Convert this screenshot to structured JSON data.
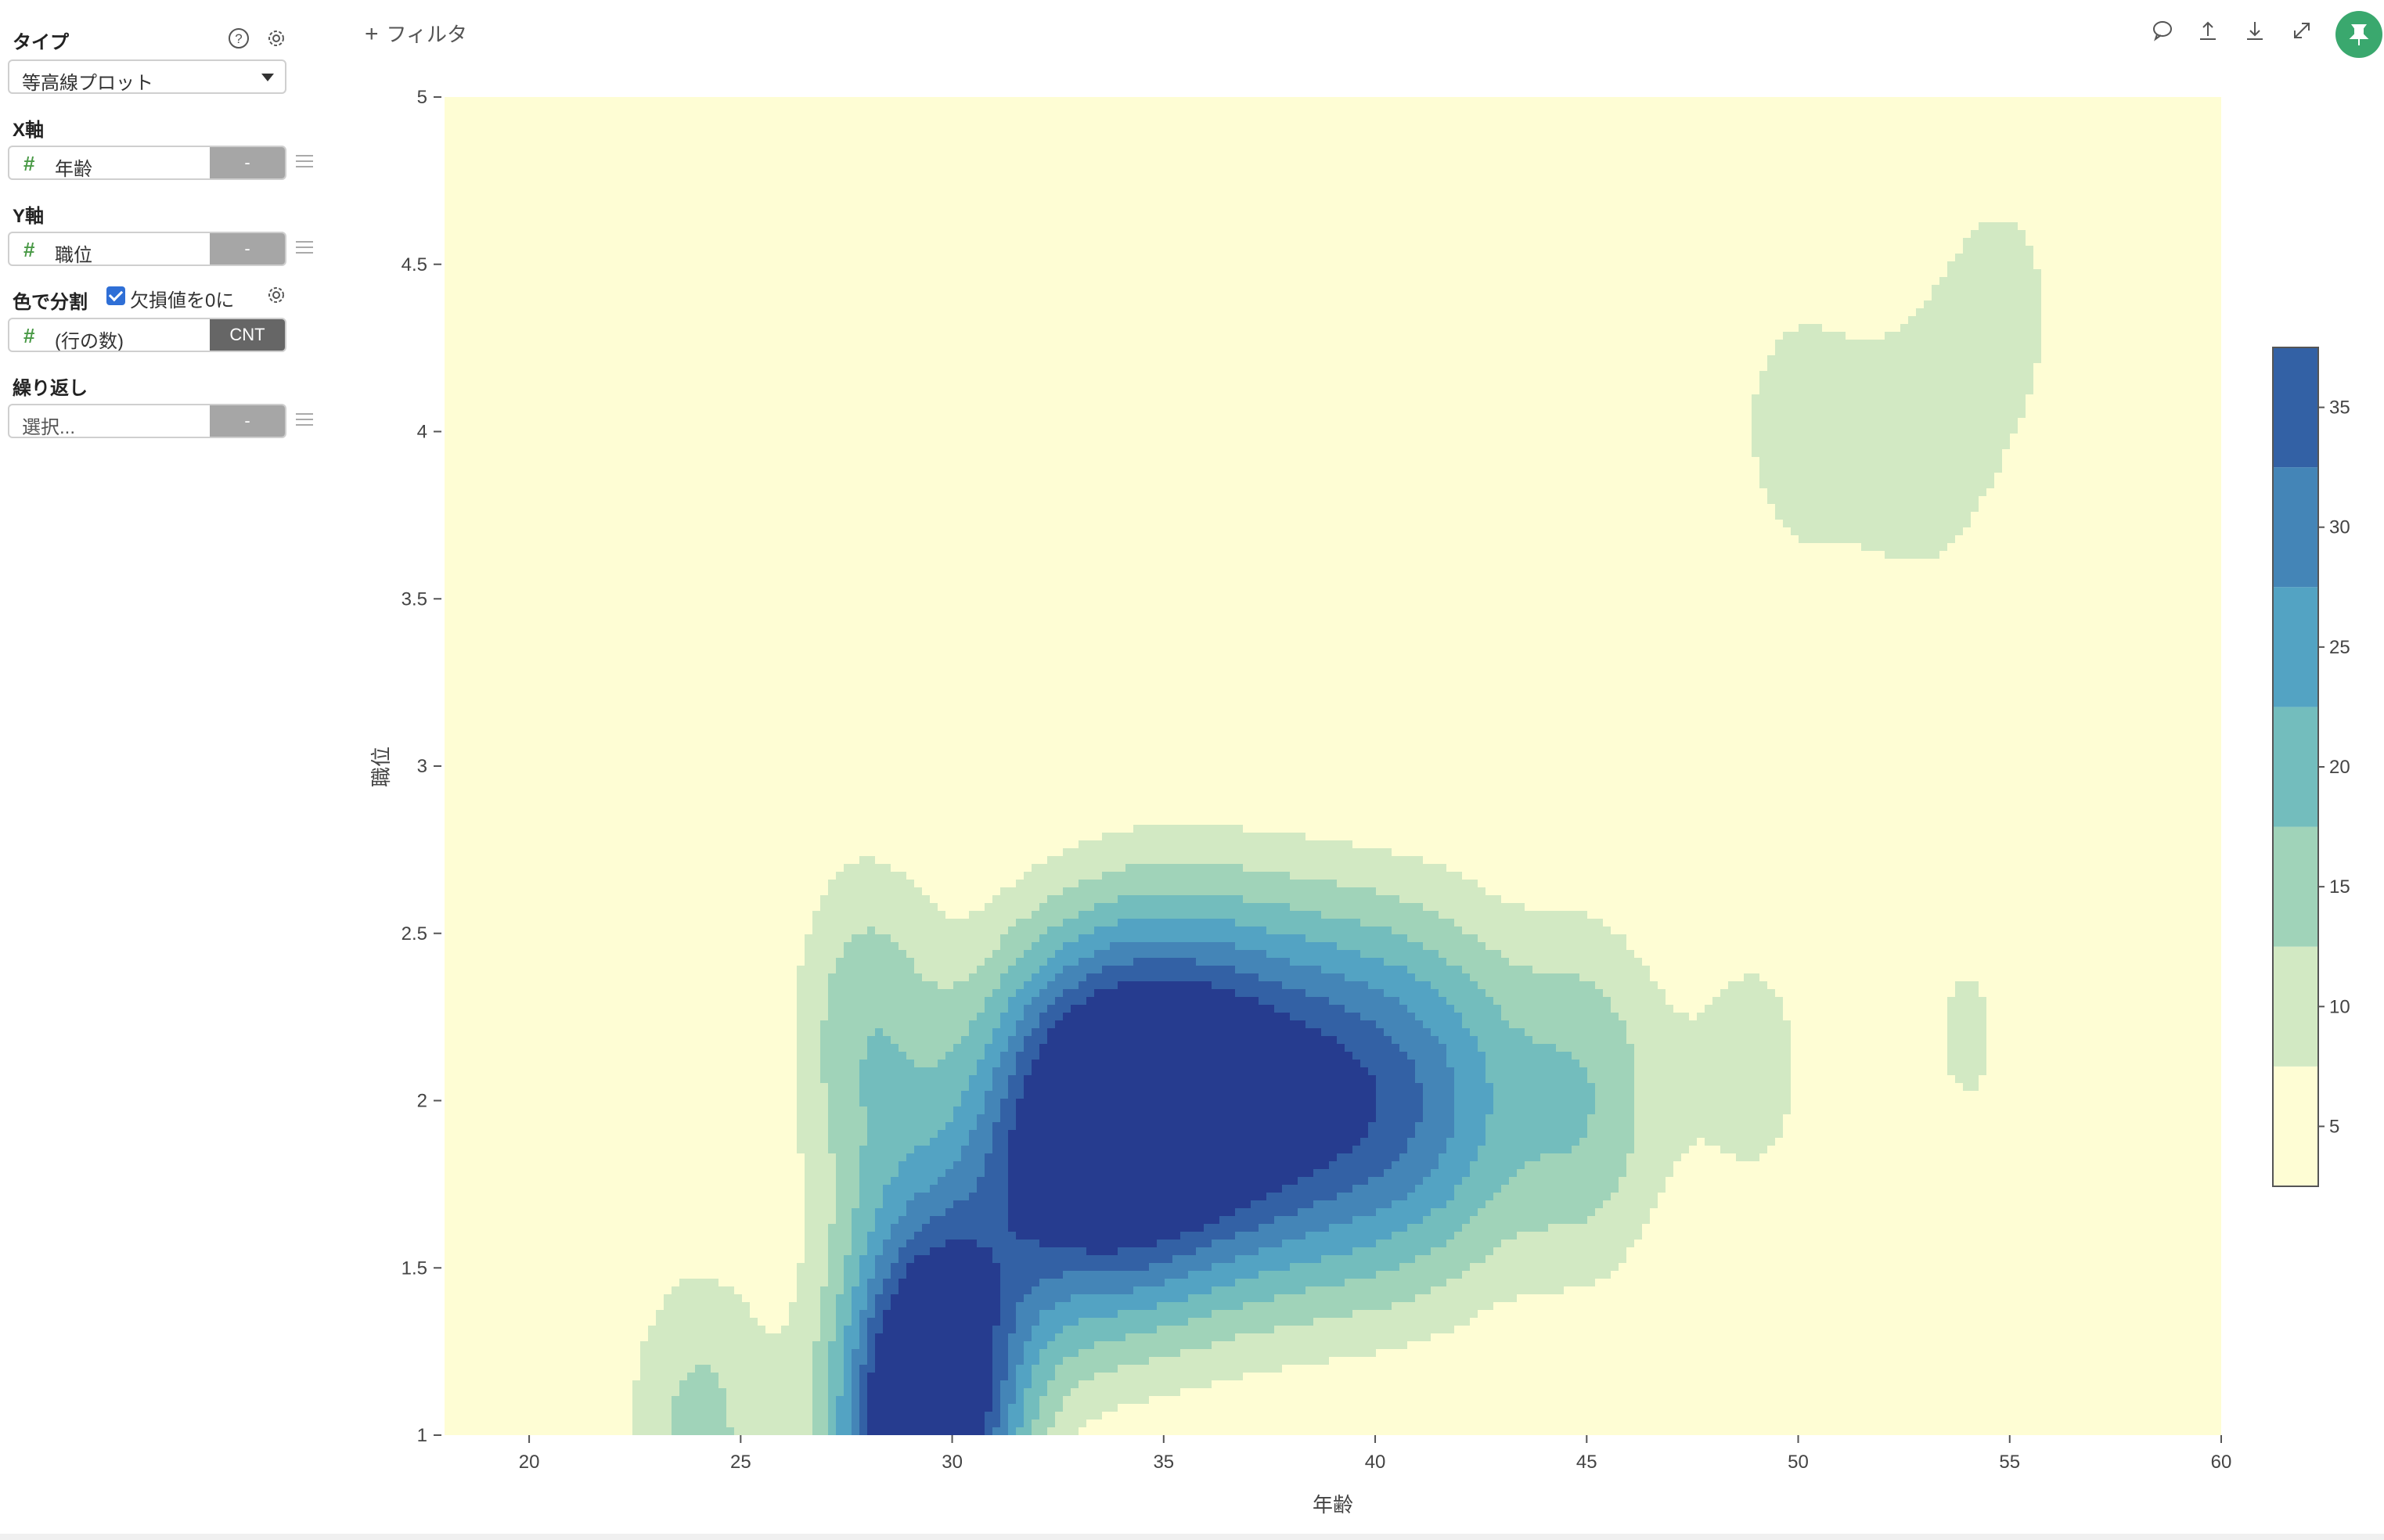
{
  "sidebar": {
    "type_label": "タイプ",
    "type_value": "等高線プロット",
    "x_label": "X軸",
    "x_field": "年齢",
    "x_agg": "-",
    "y_label": "Y軸",
    "y_field": "職位",
    "y_agg": "-",
    "color_label": "色で分割",
    "missing_label": "欠損値を0に",
    "missing_checked": true,
    "color_field": "(行の数)",
    "color_agg": "CNT",
    "repeat_label": "繰り返し",
    "repeat_placeholder": "選択...",
    "repeat_agg": "-"
  },
  "toolbar": {
    "filter_label": "フィルタ",
    "icons": [
      "comment-icon",
      "upload-icon",
      "download-icon",
      "expand-icon",
      "pin-icon"
    ]
  },
  "chart_data": {
    "type": "contour",
    "xlabel": "年齢",
    "ylabel": "職位",
    "xlim": [
      18,
      60
    ],
    "ylim": [
      1,
      5
    ],
    "xticks": [
      20,
      25,
      30,
      35,
      40,
      45,
      50,
      55,
      60
    ],
    "yticks": [
      1,
      1.5,
      2,
      2.5,
      3,
      3.5,
      4,
      4.5,
      5
    ],
    "colorbar_ticks": [
      5,
      10,
      15,
      20,
      25,
      30,
      35
    ],
    "levels": [
      2.5,
      7.5,
      12.5,
      17.5,
      22.5,
      27.5,
      32.5,
      37.5
    ],
    "level_colors": [
      "#fefdd4",
      "#d2e9c3",
      "#a0d3b9",
      "#73bdbd",
      "#53a3c3",
      "#4485b7",
      "#3361a5",
      "#263c8f"
    ],
    "background_color": "#fefdd4",
    "density_peaks": [
      {
        "x": 34,
        "y": 1.95,
        "value": 37
      },
      {
        "x": 36,
        "y": 2.0,
        "value": 31
      },
      {
        "x": 32,
        "y": 1.9,
        "value": 28
      },
      {
        "x": 29,
        "y": 1.0,
        "value": 36
      },
      {
        "x": 30,
        "y": 1.2,
        "value": 25
      },
      {
        "x": 38,
        "y": 2.0,
        "value": 25
      },
      {
        "x": 40,
        "y": 2.0,
        "value": 22
      },
      {
        "x": 42,
        "y": 2.0,
        "value": 17
      },
      {
        "x": 45,
        "y": 2.0,
        "value": 16
      },
      {
        "x": 24,
        "y": 1.0,
        "value": 14
      },
      {
        "x": 28,
        "y": 2.2,
        "value": 16
      },
      {
        "x": 49,
        "y": 2.1,
        "value": 9
      },
      {
        "x": 50,
        "y": 4.0,
        "value": 9
      },
      {
        "x": 53,
        "y": 3.9,
        "value": 8
      },
      {
        "x": 55,
        "y": 4.4,
        "value": 8
      },
      {
        "x": 54,
        "y": 2.2,
        "value": 8
      },
      {
        "x": 42,
        "y": 4.2,
        "value": 7
      },
      {
        "x": 46,
        "y": 4.2,
        "value": 7
      },
      {
        "x": 56,
        "y": 1.0,
        "value": 6
      }
    ]
  }
}
